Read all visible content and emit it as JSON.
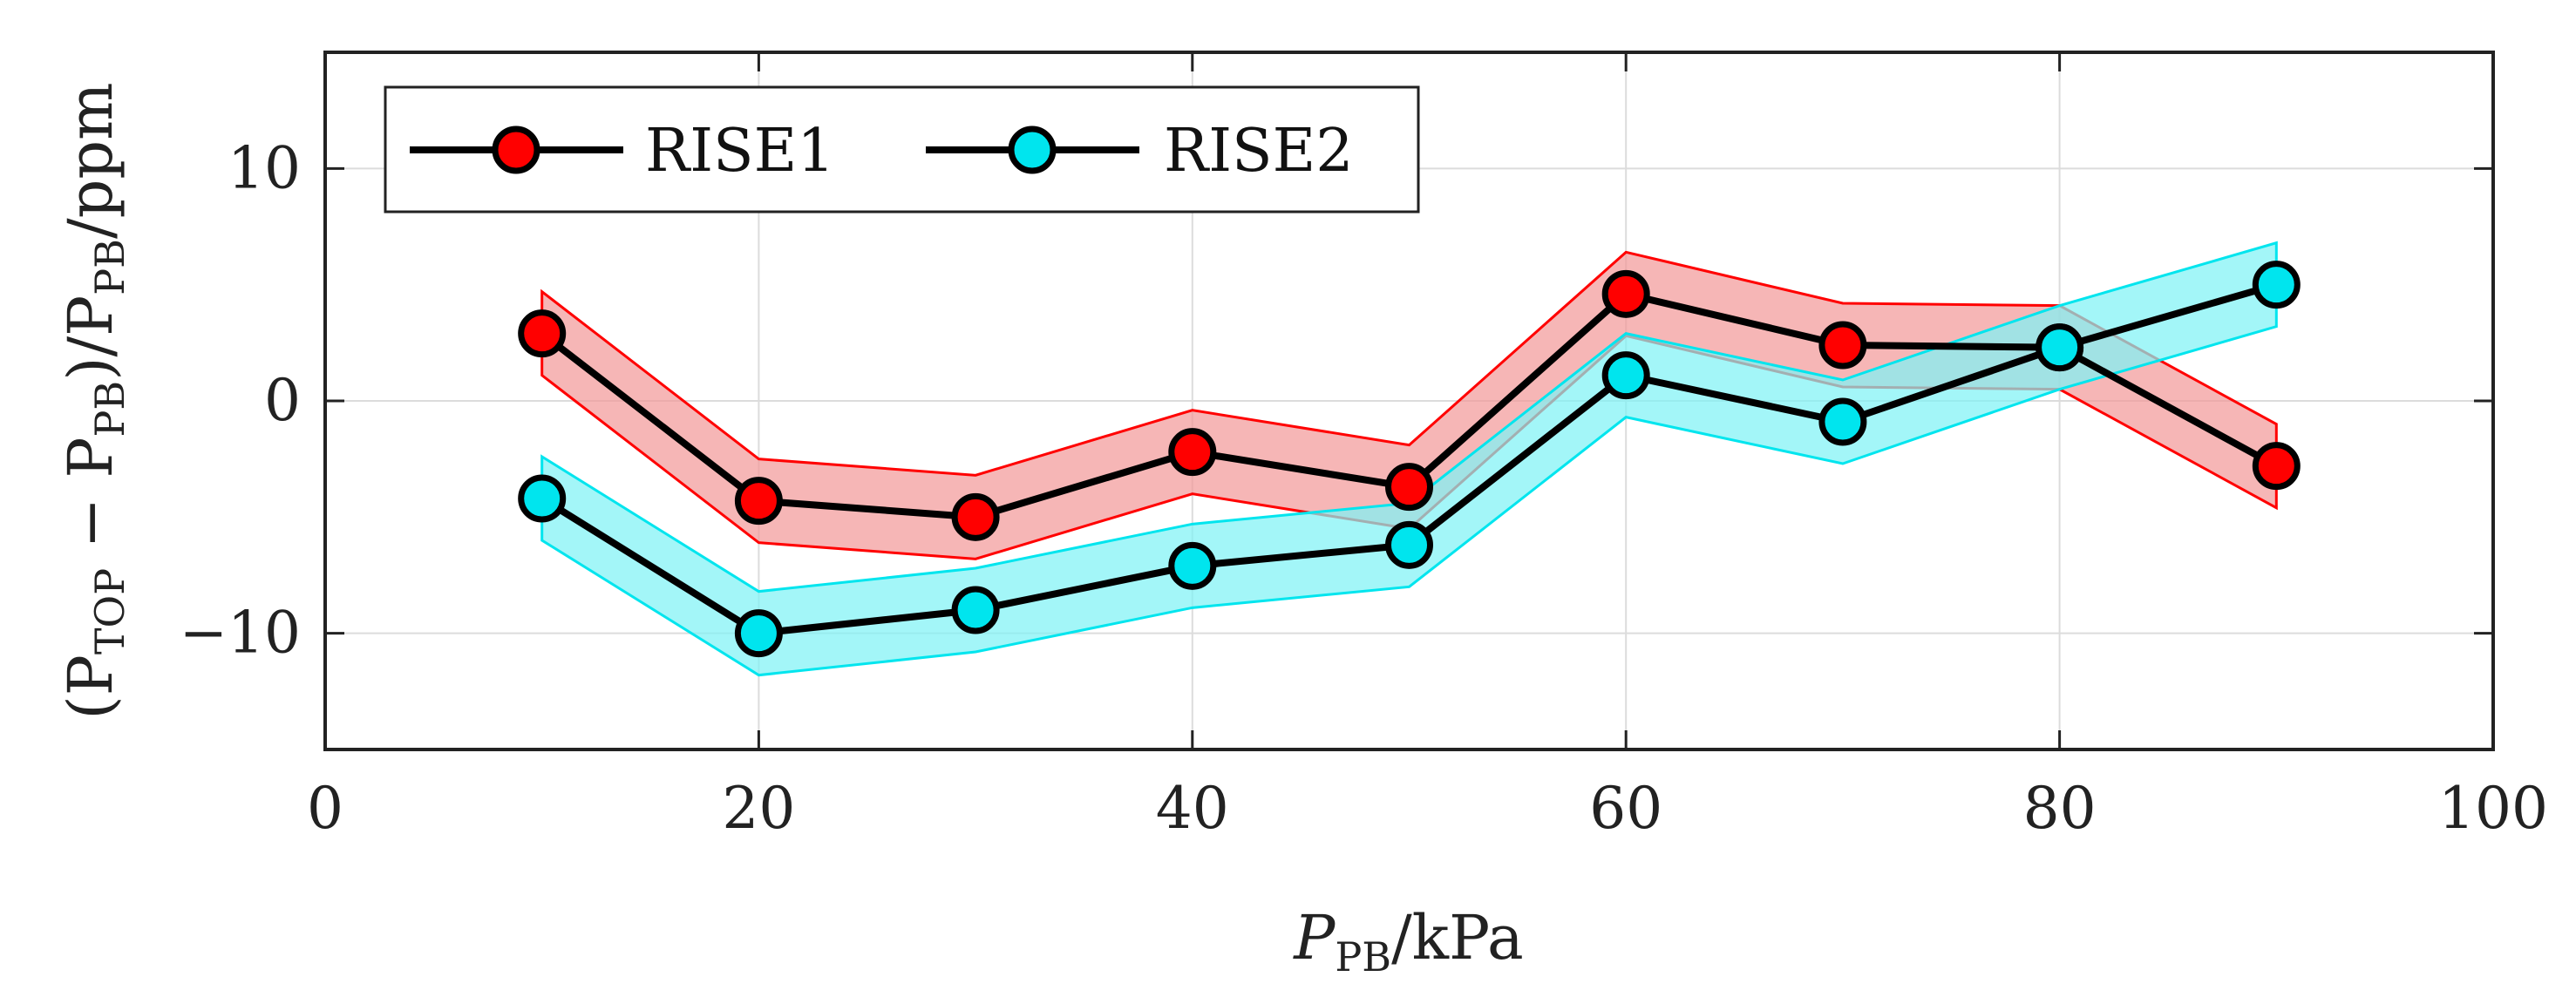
{
  "chart_data": {
    "type": "line",
    "title": "",
    "xlabel": {
      "prefix": "P",
      "sub": "PB",
      "suffix": "/kPa"
    },
    "ylabel": {
      "open": "(P",
      "sub1": "TOP",
      "mid": " − P",
      "sub2": "PB",
      "close": ")/P",
      "sub3": "PB",
      "suffix": "/ppm"
    },
    "xlim": [
      0,
      100
    ],
    "ylim": [
      -15,
      15
    ],
    "xticks": [
      0,
      20,
      40,
      60,
      80,
      100
    ],
    "xtick_labels": [
      "0",
      "20",
      "40",
      "60",
      "80",
      "100"
    ],
    "yticks": [
      -10,
      0,
      10
    ],
    "ytick_labels": [
      "−10",
      "0",
      "10"
    ],
    "grid": true,
    "legend": "top-left",
    "series": [
      {
        "name": "RISE1",
        "marker_color": "#ff0000",
        "band_fill": "#f29a9a",
        "band_edge": "#ff0000",
        "x": [
          10,
          20,
          30,
          40,
          50,
          60,
          70,
          80,
          90
        ],
        "y": [
          2.9,
          -4.3,
          -5.0,
          -2.2,
          -3.7,
          4.6,
          2.4,
          2.3,
          -2.8
        ],
        "band_half": 1.8
      },
      {
        "name": "RISE2",
        "marker_color": "#00e5ee",
        "band_fill": "#7ff2f5",
        "band_edge": "#00e5ee",
        "x": [
          10,
          20,
          30,
          40,
          50,
          60,
          70,
          80,
          90
        ],
        "y": [
          -4.2,
          -10.0,
          -9.0,
          -7.1,
          -6.2,
          1.1,
          -0.9,
          2.3,
          5.0
        ],
        "band_half": 1.8
      }
    ]
  }
}
